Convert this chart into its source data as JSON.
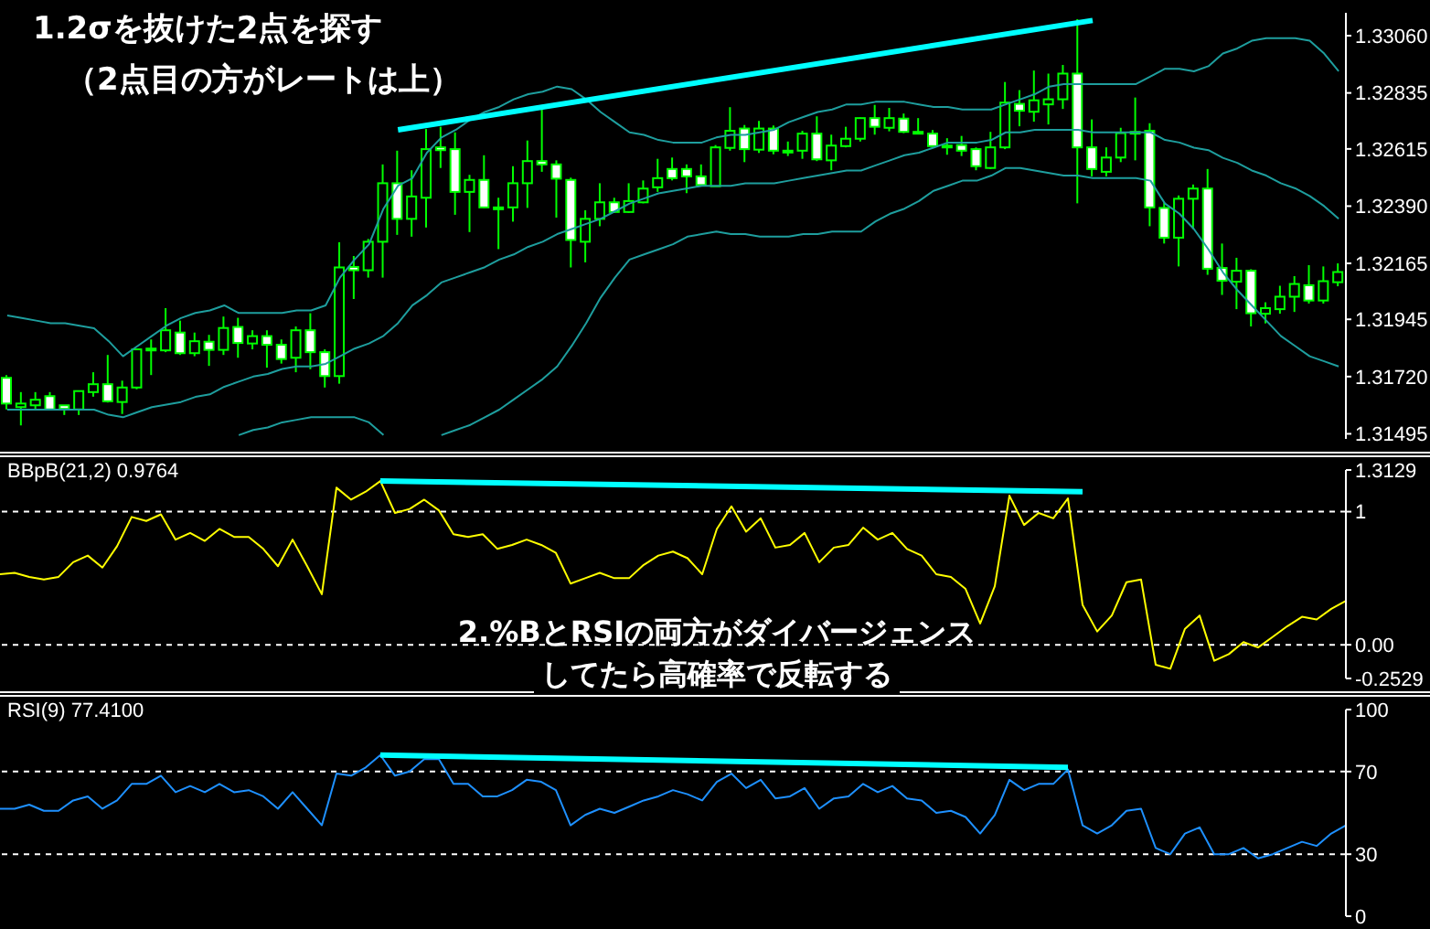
{
  "chart_data": [
    {
      "type": "candlestick",
      "color": "#00ff00",
      "tick_labels": "y",
      "annotations": [
        "1.2σを抜けた2点を探す",
        "（2点目の方がレートは上）"
      ],
      "categories": [
        null,
        null,
        null,
        null,
        null,
        null,
        null,
        null,
        null,
        null,
        null,
        null,
        null,
        null,
        null,
        null,
        null,
        null,
        null,
        null,
        null,
        null,
        null,
        null,
        null,
        null,
        null,
        null,
        null,
        null,
        null,
        null,
        null,
        null,
        null,
        null,
        null,
        null,
        null,
        null,
        null,
        null,
        null,
        null,
        null,
        null,
        null,
        null,
        null,
        null,
        null,
        null,
        null,
        null,
        null,
        null,
        null,
        null,
        null,
        null,
        null,
        null,
        null,
        null,
        null,
        null,
        null,
        null,
        null,
        null,
        null,
        null,
        null,
        null,
        null,
        null,
        null,
        null,
        null,
        null,
        null,
        null,
        null,
        null,
        null,
        null,
        null,
        null,
        null,
        null,
        null,
        null,
        null
      ],
      "ohlc": [
        [
          1.31715,
          1.31726,
          1.31591,
          1.31614
        ],
        [
          1.316,
          1.31659,
          1.31528,
          1.31614
        ],
        [
          1.31607,
          1.31659,
          1.31591,
          1.31629
        ],
        [
          1.31643,
          1.31659,
          1.31587,
          1.31591
        ],
        [
          1.31607,
          1.31607,
          1.31569,
          1.31593
        ],
        [
          1.31591,
          1.31663,
          1.31569,
          1.31663
        ],
        [
          1.31659,
          1.31737,
          1.31641,
          1.3169
        ],
        [
          1.3169,
          1.31805,
          1.31618,
          1.31623
        ],
        [
          1.3162,
          1.31704,
          1.31573,
          1.31677
        ],
        [
          1.31677,
          1.31827,
          1.3167,
          1.31827
        ],
        [
          1.31823,
          1.31866,
          1.31726,
          1.3183
        ],
        [
          1.31823,
          1.31989,
          1.31816,
          1.31902
        ],
        [
          1.31893,
          1.3194,
          1.31805,
          1.31812
        ],
        [
          1.31812,
          1.31893,
          1.318,
          1.31859
        ],
        [
          1.31857,
          1.31884,
          1.31762,
          1.31825
        ],
        [
          1.31825,
          1.31956,
          1.31805,
          1.31911
        ],
        [
          1.31915,
          1.31951,
          1.31794,
          1.31852
        ],
        [
          1.3185,
          1.31902,
          1.31827,
          1.31879
        ],
        [
          1.31879,
          1.31902,
          1.31755,
          1.31845
        ],
        [
          1.31845,
          1.31866,
          1.31771,
          1.31789
        ],
        [
          1.31794,
          1.31917,
          1.31737,
          1.31902
        ],
        [
          1.31902,
          1.31969,
          1.31749,
          1.31816
        ],
        [
          1.31816,
          1.31827,
          1.31677,
          1.31722
        ],
        [
          1.31722,
          1.32248,
          1.31692,
          1.32149
        ],
        [
          1.32151,
          1.32194,
          1.32025,
          1.32138
        ],
        [
          1.32138,
          1.32261,
          1.32109,
          1.3225
        ],
        [
          1.3225,
          1.32554,
          1.32109,
          1.3248
        ],
        [
          1.3248,
          1.32608,
          1.32277,
          1.3234
        ],
        [
          1.3234,
          1.32531,
          1.3227,
          1.32428
        ],
        [
          1.32423,
          1.32693,
          1.32306,
          1.32614
        ],
        [
          1.32621,
          1.32702,
          1.3254,
          1.3261
        ],
        [
          1.32614,
          1.3268,
          1.32356,
          1.32446
        ],
        [
          1.32446,
          1.32513,
          1.32288,
          1.32493
        ],
        [
          1.32493,
          1.3259,
          1.32383,
          1.32385
        ],
        [
          1.32385,
          1.32423,
          1.32221,
          1.32385
        ],
        [
          1.32385,
          1.32547,
          1.32329,
          1.3248
        ],
        [
          1.3248,
          1.32648,
          1.32383,
          1.32567
        ],
        [
          1.32567,
          1.32783,
          1.32525,
          1.32554
        ],
        [
          1.32554,
          1.3257,
          1.32345,
          1.32498
        ],
        [
          1.32493,
          1.32502,
          1.32149,
          1.32257
        ],
        [
          1.3225,
          1.32374,
          1.32169,
          1.3234
        ],
        [
          1.3234,
          1.3248,
          1.32311,
          1.32405
        ],
        [
          1.32405,
          1.32423,
          1.32363,
          1.32367
        ],
        [
          1.32367,
          1.3248,
          1.32363,
          1.3241
        ],
        [
          1.32405,
          1.32491,
          1.32401,
          1.32459
        ],
        [
          1.32464,
          1.32576,
          1.32446,
          1.325
        ],
        [
          1.32536,
          1.32581,
          1.32491,
          1.325
        ],
        [
          1.32536,
          1.32554,
          1.32441,
          1.32507
        ],
        [
          1.32507,
          1.32554,
          1.32473,
          1.32473
        ],
        [
          1.32468,
          1.3263,
          1.32468,
          1.32621
        ],
        [
          1.32619,
          1.32779,
          1.32608,
          1.32686
        ],
        [
          1.32695,
          1.32709,
          1.32563,
          1.32614
        ],
        [
          1.32612,
          1.32725,
          1.32599,
          1.32695
        ],
        [
          1.32695,
          1.32707,
          1.32594,
          1.32608
        ],
        [
          1.32608,
          1.32644,
          1.32587,
          1.32608
        ],
        [
          1.32608,
          1.32686,
          1.32576,
          1.32675
        ],
        [
          1.32675,
          1.32743,
          1.32567,
          1.32574
        ],
        [
          1.3257,
          1.32671,
          1.32531,
          1.32628
        ],
        [
          1.32626,
          1.32702,
          1.32621,
          1.32655
        ],
        [
          1.32655,
          1.32738,
          1.32644,
          1.32736
        ],
        [
          1.32736,
          1.32788,
          1.32671,
          1.32702
        ],
        [
          1.32698,
          1.32776,
          1.32684,
          1.32736
        ],
        [
          1.32734,
          1.32754,
          1.32677,
          1.32682
        ],
        [
          1.32682,
          1.32736,
          1.32675,
          1.32675
        ],
        [
          1.32675,
          1.32689,
          1.32623,
          1.32626
        ],
        [
          1.32628,
          1.32657,
          1.32592,
          1.32628
        ],
        [
          1.3263,
          1.32666,
          1.32587,
          1.32608
        ],
        [
          1.32614,
          1.32621,
          1.32531,
          1.32547
        ],
        [
          1.3254,
          1.32682,
          1.32536,
          1.32621
        ],
        [
          1.32621,
          1.32878,
          1.32614,
          1.32797
        ],
        [
          1.32792,
          1.32846,
          1.32704,
          1.32765
        ],
        [
          1.32761,
          1.32923,
          1.32722,
          1.32806
        ],
        [
          1.3279,
          1.32911,
          1.32711,
          1.3281
        ],
        [
          1.3281,
          1.32945,
          1.32772,
          1.32911
        ],
        [
          1.32911,
          1.33125,
          1.32401,
          1.32621
        ],
        [
          1.32621,
          1.32731,
          1.32507,
          1.32536
        ],
        [
          1.32525,
          1.32621,
          1.32507,
          1.32581
        ],
        [
          1.32581,
          1.32698,
          1.32563,
          1.32677
        ],
        [
          1.32682,
          1.32817,
          1.3257,
          1.32682
        ],
        [
          1.32686,
          1.32716,
          1.32311,
          1.32385
        ],
        [
          1.32383,
          1.32405,
          1.32243,
          1.32266
        ],
        [
          1.32266,
          1.32432,
          1.32153,
          1.32419
        ],
        [
          1.32419,
          1.32475,
          1.323,
          1.32459
        ],
        [
          1.32459,
          1.32536,
          1.3212,
          1.32144
        ],
        [
          1.32147,
          1.32243,
          1.32041,
          1.32097
        ],
        [
          1.32093,
          1.32187,
          1.31985,
          1.32136
        ],
        [
          1.32136,
          1.32142,
          1.31917,
          1.31969
        ],
        [
          1.31967,
          1.32012,
          1.31929,
          1.31989
        ],
        [
          1.31985,
          1.32077,
          1.31967,
          1.32034
        ],
        [
          1.32034,
          1.32115,
          1.31974,
          1.32084
        ],
        [
          1.32079,
          1.32158,
          1.32007,
          1.32019
        ],
        [
          1.32019,
          1.32153,
          1.32007,
          1.32095
        ],
        [
          1.32091,
          1.32165,
          1.32075,
          1.32131
        ]
      ],
      "series": [
        {
          "type": "line",
          "color": "#1e9e9e",
          "values": [
            1.3196,
            1.3195,
            1.3194,
            1.3193,
            1.3193,
            1.3192,
            1.3191,
            1.3186,
            1.318,
            1.3184,
            1.3188,
            1.3192,
            1.3195,
            1.3197,
            1.3198,
            1.32,
            1.3197,
            1.3197,
            1.3197,
            1.3197,
            1.3198,
            1.3198,
            1.32,
            1.3211,
            1.3218,
            1.3224,
            1.3238,
            1.3247,
            1.325,
            1.326,
            1.3266,
            1.3269,
            1.3273,
            1.3276,
            1.3278,
            1.3281,
            1.3283,
            1.3284,
            1.3286,
            1.3285,
            1.3281,
            1.3276,
            1.3272,
            1.3268,
            1.3267,
            1.3265,
            1.3264,
            1.3264,
            1.3264,
            1.3266,
            1.3267,
            1.3267,
            1.3268,
            1.3269,
            1.3272,
            1.3274,
            1.3276,
            1.3277,
            1.3279,
            1.3279,
            1.328,
            1.328,
            1.328,
            1.3279,
            1.3278,
            1.3278,
            1.3277,
            1.3277,
            1.3277,
            1.3279,
            1.3281,
            1.3283,
            1.3286,
            1.3287,
            1.3287,
            1.3287,
            1.3287,
            1.3287,
            1.3287,
            1.329,
            1.3293,
            1.3293,
            1.3292,
            1.3294,
            1.3299,
            1.3301,
            1.3304,
            1.3305,
            1.3305,
            1.3305,
            1.3304,
            1.3299,
            1.3292
          ]
        },
        {
          "type": "line",
          "color": "#1e9e9e",
          "values": [
            1.3159,
            1.3159,
            1.3159,
            1.3159,
            1.3159,
            1.3159,
            1.3159,
            1.3157,
            1.3156,
            1.3158,
            1.316,
            1.3161,
            1.3162,
            1.3164,
            1.3165,
            1.3168,
            1.317,
            1.3172,
            1.3173,
            1.3175,
            1.3176,
            1.3176,
            1.3177,
            1.318,
            1.3183,
            1.3185,
            1.3188,
            1.3193,
            1.32,
            1.3204,
            1.3209,
            1.3211,
            1.3213,
            1.3215,
            1.3218,
            1.322,
            1.3223,
            1.3225,
            1.3228,
            1.323,
            1.3232,
            1.3234,
            1.3237,
            1.324,
            1.3242,
            1.3244,
            1.3245,
            1.3246,
            1.3247,
            1.3247,
            1.3247,
            1.3248,
            1.3248,
            1.3248,
            1.3249,
            1.325,
            1.3251,
            1.3252,
            1.3253,
            1.3253,
            1.3255,
            1.3257,
            1.3259,
            1.326,
            1.3262,
            1.3264,
            1.3264,
            1.3264,
            1.3265,
            1.3268,
            1.3268,
            1.3269,
            1.3269,
            1.3269,
            1.3269,
            1.3268,
            1.3268,
            1.3268,
            1.3268,
            1.3268,
            1.3265,
            1.3264,
            1.3262,
            1.3261,
            1.3258,
            1.3256,
            1.3253,
            1.3251,
            1.3248,
            1.3246,
            1.3243,
            1.3239,
            1.3234
          ]
        },
        {
          "type": "line",
          "color": "#1e9e9e",
          "values": [
            null,
            null,
            null,
            null,
            null,
            null,
            null,
            null,
            null,
            null,
            null,
            null,
            null,
            null,
            null,
            null,
            1.3149,
            1.3151,
            1.3152,
            1.3154,
            1.3155,
            1.3156,
            1.3156,
            1.3156,
            1.3156,
            1.3154,
            1.3149,
            null,
            null,
            null,
            1.3149,
            1.3151,
            1.3153,
            1.3156,
            1.3159,
            1.3163,
            1.3167,
            1.3171,
            1.3176,
            1.3184,
            1.3193,
            1.3203,
            1.3211,
            1.3218,
            1.322,
            1.3222,
            1.3224,
            1.3227,
            1.3228,
            1.3229,
            1.3228,
            1.3228,
            1.3227,
            1.3227,
            1.3227,
            1.3228,
            1.3228,
            1.3229,
            1.3229,
            1.3229,
            1.3233,
            1.3236,
            1.3238,
            1.3241,
            1.3245,
            1.3247,
            1.3249,
            1.3249,
            1.3251,
            1.3254,
            1.3254,
            1.3253,
            1.3252,
            1.3251,
            1.3251,
            1.325,
            1.325,
            1.325,
            1.325,
            1.3249,
            1.324,
            1.3236,
            1.323,
            1.3222,
            1.3213,
            1.3206,
            1.32,
            1.3194,
            1.3188,
            1.3184,
            1.318,
            1.3178,
            1.3176
          ]
        },
        {
          "type": "line",
          "color": "#00ffff",
          "values": [
            null,
            null,
            null,
            null,
            null,
            null,
            null,
            null,
            null,
            null,
            null,
            null,
            null,
            null,
            null,
            null,
            null,
            null,
            null,
            null,
            null,
            null,
            null,
            null,
            null,
            null,
            null,
            1.3269,
            null,
            null,
            null,
            null,
            null,
            null,
            null,
            null,
            null,
            null,
            null,
            null,
            null,
            null,
            null,
            null,
            null,
            null,
            null,
            null,
            null,
            null,
            null,
            null,
            null,
            null,
            null,
            null,
            null,
            null,
            null,
            null,
            null,
            null,
            null,
            null,
            null,
            null,
            null,
            null,
            null,
            null,
            null,
            null,
            null,
            null,
            null,
            1.3312,
            null,
            null,
            null,
            null,
            null,
            null,
            null,
            null,
            null,
            null,
            null,
            null,
            null,
            null,
            null,
            null,
            null
          ]
        }
      ],
      "ylim": [
        1.31475,
        1.3315
      ],
      "yticks": [
        {
          "value": 1.3306,
          "label": "1.33060"
        },
        {
          "value": 1.32835,
          "label": "1.32835"
        },
        {
          "value": 1.32615,
          "label": "1.32615"
        },
        {
          "value": 1.3239,
          "label": "1.32390"
        },
        {
          "value": 1.32165,
          "label": "1.32165"
        },
        {
          "value": 1.31945,
          "label": "1.31945"
        },
        {
          "value": 1.3172,
          "label": "1.31720"
        },
        {
          "value": 1.31495,
          "label": "1.31495"
        }
      ]
    },
    {
      "type": "line",
      "title": "BBpB(21,2) 0.9764",
      "tick_labels": "y",
      "annotations": [
        "2.%BとRSIの両方がダイバージェンス",
        "してたら高確率で反転する"
      ],
      "categories": [
        null,
        null,
        null,
        null,
        null,
        null,
        null,
        null,
        null,
        null,
        null,
        null,
        null,
        null,
        null,
        null,
        null,
        null,
        null,
        null,
        null,
        null,
        null,
        null,
        null,
        null,
        null,
        null,
        null,
        null,
        null,
        null,
        null,
        null,
        null,
        null,
        null,
        null,
        null,
        null,
        null,
        null,
        null,
        null,
        null,
        null,
        null,
        null,
        null,
        null,
        null,
        null,
        null,
        null,
        null,
        null,
        null,
        null,
        null,
        null,
        null,
        null,
        null,
        null,
        null,
        null,
        null,
        null,
        null,
        null,
        null,
        null,
        null,
        null,
        null,
        null,
        null,
        null,
        null,
        null,
        null,
        null,
        null,
        null,
        null,
        null,
        null,
        null,
        null,
        null,
        null,
        null,
        null
      ],
      "series": [
        {
          "color": "#ffff00",
          "values": [
            0.53,
            0.54,
            0.51,
            0.49,
            0.51,
            0.62,
            0.67,
            0.58,
            0.74,
            0.96,
            0.93,
            0.98,
            0.79,
            0.84,
            0.78,
            0.87,
            0.81,
            0.81,
            0.72,
            0.59,
            0.79,
            0.59,
            0.38,
            1.18,
            1.09,
            1.15,
            1.23,
            0.99,
            1.02,
            1.09,
            1.01,
            0.83,
            0.81,
            0.83,
            0.72,
            0.75,
            0.79,
            0.75,
            0.69,
            0.46,
            0.5,
            0.54,
            0.5,
            0.5,
            0.6,
            0.67,
            0.7,
            0.65,
            0.53,
            0.87,
            1.04,
            0.85,
            0.95,
            0.73,
            0.75,
            0.84,
            0.62,
            0.73,
            0.75,
            0.88,
            0.79,
            0.84,
            0.72,
            0.67,
            0.53,
            0.51,
            0.42,
            0.16,
            0.44,
            1.12,
            0.9,
            0.99,
            0.95,
            1.1,
            0.3,
            0.1,
            0.22,
            0.47,
            0.49,
            -0.15,
            -0.18,
            0.12,
            0.22,
            -0.12,
            -0.07,
            0.02,
            -0.02,
            0.06,
            0.14,
            0.21,
            0.19,
            0.27,
            0.33
          ]
        },
        {
          "color": "#00ffff",
          "values": [
            null,
            null,
            null,
            null,
            null,
            null,
            null,
            null,
            null,
            null,
            null,
            null,
            null,
            null,
            null,
            null,
            null,
            null,
            null,
            null,
            null,
            null,
            null,
            null,
            null,
            null,
            1.23,
            null,
            null,
            null,
            null,
            null,
            null,
            null,
            null,
            null,
            null,
            null,
            null,
            null,
            null,
            null,
            null,
            null,
            null,
            null,
            null,
            null,
            null,
            null,
            null,
            null,
            null,
            null,
            null,
            null,
            null,
            null,
            null,
            null,
            null,
            null,
            null,
            null,
            null,
            null,
            null,
            null,
            null,
            null,
            null,
            null,
            null,
            null,
            1.15,
            null,
            null,
            null,
            null,
            null,
            null,
            null,
            null,
            null,
            null,
            null,
            null,
            null,
            null,
            null,
            null,
            null,
            null
          ]
        }
      ],
      "ylim": [
        -0.2529,
        1.3129
      ],
      "yticks": [
        1.3129,
        1,
        {
          "value": 0,
          "label": "0.00"
        },
        -0.2529
      ],
      "ref_lines": [
        {
          "axis": "y",
          "value": 1,
          "color": "#ffffff",
          "line_style": "dashed"
        },
        {
          "axis": "y",
          "value": 0,
          "color": "#ffffff",
          "line_style": "dashed"
        }
      ]
    },
    {
      "type": "line",
      "title": "RSI(9) 77.4100",
      "tick_labels": "y",
      "categories": [
        null,
        null,
        null,
        null,
        null,
        null,
        null,
        null,
        null,
        null,
        null,
        null,
        null,
        null,
        null,
        null,
        null,
        null,
        null,
        null,
        null,
        null,
        null,
        null,
        null,
        null,
        null,
        null,
        null,
        null,
        null,
        null,
        null,
        null,
        null,
        null,
        null,
        null,
        null,
        null,
        null,
        null,
        null,
        null,
        null,
        null,
        null,
        null,
        null,
        null,
        null,
        null,
        null,
        null,
        null,
        null,
        null,
        null,
        null,
        null,
        null,
        null,
        null,
        null,
        null,
        null,
        null,
        null,
        null,
        null,
        null,
        null,
        null,
        null,
        null,
        null,
        null,
        null,
        null,
        null,
        null,
        null,
        null,
        null,
        null,
        null,
        null,
        null,
        null,
        null,
        null,
        null,
        null
      ],
      "series": [
        {
          "color": "#1e90ff",
          "values": [
            52,
            52,
            54,
            51,
            51,
            56,
            58,
            52,
            56,
            64,
            64,
            68,
            60,
            63,
            60,
            64,
            60,
            61,
            58,
            52,
            60,
            52,
            44,
            69,
            68,
            72,
            78,
            68,
            70,
            76,
            76,
            64,
            64,
            58,
            58,
            61,
            66,
            65,
            61,
            44,
            49,
            52,
            50,
            53,
            56,
            58,
            61,
            59,
            56,
            65,
            69,
            62,
            66,
            57,
            58,
            62,
            52,
            57,
            58,
            64,
            60,
            63,
            57,
            56,
            50,
            51,
            48,
            40,
            49,
            66,
            61,
            64,
            64,
            71,
            44,
            40,
            44,
            51,
            52,
            33,
            30,
            40,
            43,
            30,
            30,
            33,
            28,
            30,
            33,
            36,
            34,
            40,
            44
          ]
        },
        {
          "color": "#00ffff",
          "values": [
            null,
            null,
            null,
            null,
            null,
            null,
            null,
            null,
            null,
            null,
            null,
            null,
            null,
            null,
            null,
            null,
            null,
            null,
            null,
            null,
            null,
            null,
            null,
            null,
            null,
            null,
            78,
            null,
            null,
            null,
            null,
            null,
            null,
            null,
            null,
            null,
            null,
            null,
            null,
            null,
            null,
            null,
            null,
            null,
            null,
            null,
            null,
            null,
            null,
            null,
            null,
            null,
            null,
            null,
            null,
            null,
            null,
            null,
            null,
            null,
            null,
            null,
            null,
            null,
            null,
            null,
            null,
            null,
            null,
            null,
            null,
            null,
            null,
            72,
            null,
            null,
            null,
            null,
            null,
            null,
            null,
            null,
            null,
            null,
            null,
            null,
            null,
            null,
            null,
            null,
            null,
            null,
            null
          ]
        }
      ],
      "ylim": [
        0,
        100
      ],
      "yticks": [
        100,
        70,
        30,
        0
      ],
      "ref_lines": [
        {
          "axis": "y",
          "value": 70,
          "color": "#ffffff",
          "line_style": "dashed"
        },
        {
          "axis": "y",
          "value": 30,
          "color": "#ffffff",
          "line_style": "dashed"
        }
      ]
    }
  ]
}
